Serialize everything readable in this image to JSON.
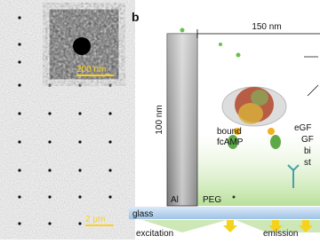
{
  "panel_a": {
    "inset_scale": "200 nm",
    "scale": "2 μm"
  },
  "panel_b": {
    "label": "b",
    "width": "150 nm",
    "height": "100 nm",
    "ligand": [
      "bound",
      "fcAMP"
    ],
    "right_labels": [
      "eGF",
      "GF",
      "bi",
      "st"
    ],
    "pillar": "Al",
    "coating": "PEG",
    "substrate": "glass",
    "excitation": "excitation",
    "emission": "emission"
  }
}
